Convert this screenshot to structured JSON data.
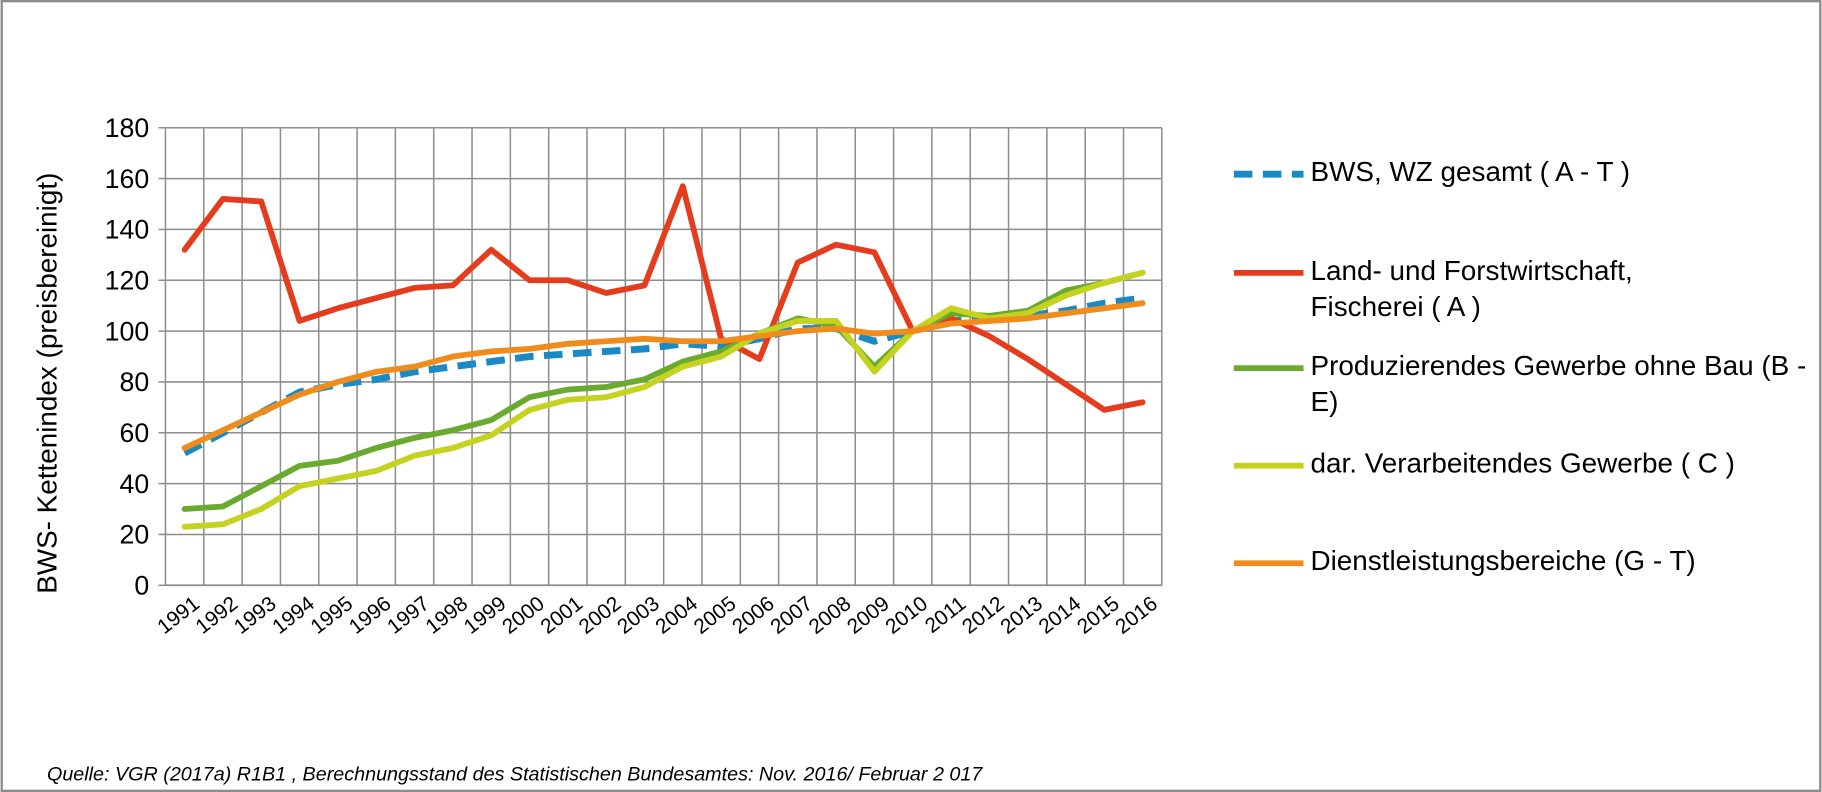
{
  "chart_data": {
    "type": "line",
    "y_label": "BWS- Kettenindex (preisbereinigt)",
    "source": "Quelle:  VGR (2017a) R1B1 , Berechnungsstand  des Statistischen Bundesamtes: Nov. 2016/ Februar 2 017",
    "categories": [
      "1991",
      "1992",
      "1993",
      "1994",
      "1995",
      "1996",
      "1997",
      "1998",
      "1999",
      "2000",
      "2001",
      "2002",
      "2003",
      "2004",
      "2005",
      "2006",
      "2007",
      "2008",
      "2009",
      "2010",
      "2011",
      "2012",
      "2013",
      "2014",
      "2015",
      "2016"
    ],
    "ylim": [
      0,
      180
    ],
    "yticks": [
      0,
      20,
      40,
      60,
      80,
      100,
      120,
      140,
      160,
      180
    ],
    "grid": true,
    "legend": "right",
    "series": [
      {
        "name": "BWS, WZ gesamt ( A - T )",
        "color": "#1a8ac6",
        "dashed": true,
        "values": [
          52,
          60,
          68,
          76,
          79,
          81,
          84,
          86,
          88,
          90,
          91,
          92,
          93,
          95,
          94,
          97,
          101,
          101,
          96,
          100,
          104,
          105,
          106,
          108,
          111,
          113
        ]
      },
      {
        "name": "Land- und Forstwirtschaft, Fischerei ( A )",
        "color": "#e63c1e",
        "values": [
          132,
          152,
          151,
          104,
          109,
          113,
          117,
          118,
          132,
          120,
          120,
          115,
          118,
          157,
          97,
          89,
          127,
          134,
          131,
          100,
          105,
          98,
          89,
          79,
          69,
          72
        ]
      },
      {
        "name": "Produzierendes Gewerbe ohne Bau (B - E)",
        "color": "#6aaa2e",
        "values": [
          30,
          31,
          39,
          47,
          49,
          54,
          58,
          61,
          65,
          74,
          77,
          78,
          81,
          88,
          92,
          99,
          105,
          102,
          86,
          100,
          107,
          106,
          108,
          116,
          119,
          123
        ]
      },
      {
        "name": "dar. Verarbeitendes Gewerbe ( C )",
        "color": "#c5d320",
        "values": [
          23,
          24,
          30,
          39,
          42,
          45,
          51,
          54,
          59,
          69,
          73,
          74,
          78,
          86,
          90,
          99,
          104,
          104,
          84,
          100,
          109,
          105,
          107,
          114,
          119,
          123
        ]
      },
      {
        "name": "Dienstleistungsbereiche (G - T)",
        "color": "#f08c1c",
        "values": [
          54,
          61,
          68,
          75,
          80,
          84,
          86,
          90,
          92,
          93,
          95,
          96,
          97,
          96,
          96,
          98,
          100,
          101,
          99,
          100,
          103,
          104,
          105,
          107,
          109,
          111
        ]
      }
    ]
  }
}
